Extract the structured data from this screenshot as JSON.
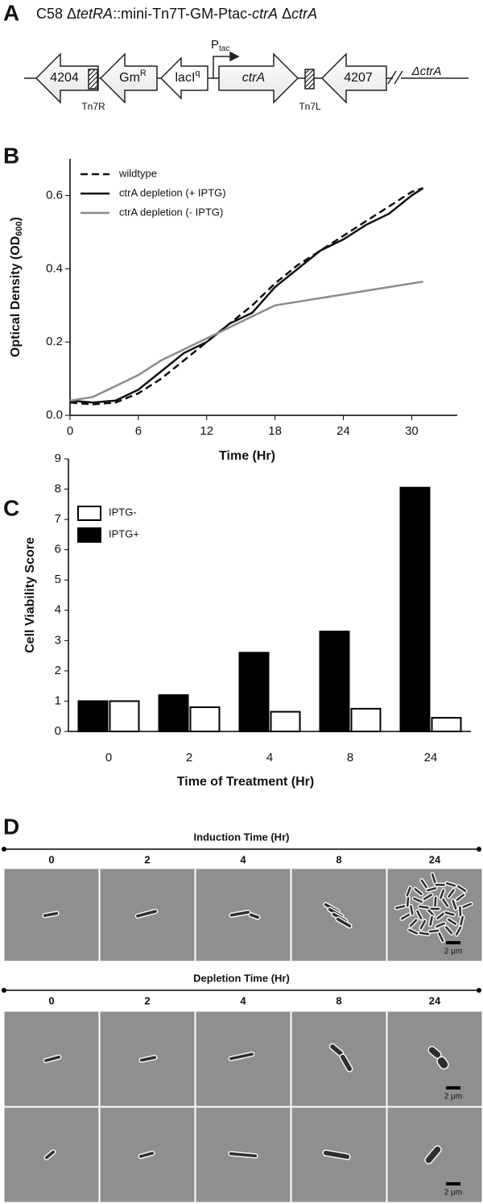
{
  "panel_a": {
    "label": "A",
    "title_parts": [
      "C58 Δ",
      "tetRA",
      "::mini-Tn7T-GM-Ptac-",
      "ctrA",
      "  Δ",
      "ctrA"
    ],
    "gene_4204": "4204",
    "gm": "Gm",
    "gm_sup": "R",
    "laci": "lacI",
    "laci_sup": "q",
    "ctra": "ctrA",
    "gene_4207": "4207",
    "delta_ctra": "ΔctrA",
    "tn7r": "Tn7R",
    "tn7l": "Tn7L",
    "ptac": "P",
    "ptac_sub": "tac"
  },
  "chart_data": [
    {
      "type": "line",
      "panel": "B",
      "xlabel": "Time (Hr)",
      "ylabel": "Optical Density (OD",
      "ylabel_sub": "600",
      "ylabel_end": ")",
      "x": [
        0,
        2,
        4,
        6,
        8,
        10,
        12,
        14,
        16,
        18,
        20,
        22,
        24,
        26,
        28,
        30,
        31
      ],
      "xlim": [
        0,
        34
      ],
      "xticks": [
        0,
        6,
        12,
        18,
        24,
        30
      ],
      "ylim": [
        0,
        0.7
      ],
      "yticks": [
        {
          "value": 0,
          "label": "0.0"
        },
        0.2,
        0.4,
        0.6
      ],
      "series": [
        {
          "name": "wildtype",
          "color": "#111111",
          "linestyle": "dashed",
          "values": [
            0.035,
            0.03,
            0.035,
            0.06,
            0.1,
            0.15,
            0.2,
            0.25,
            0.3,
            0.36,
            0.41,
            0.45,
            0.49,
            0.53,
            0.57,
            0.61,
            0.62
          ]
        },
        {
          "name": "ctrA depletion (+ IPTG)",
          "color": "#111111",
          "linestyle": "solid",
          "values": [
            0.04,
            0.035,
            0.04,
            0.07,
            0.12,
            0.17,
            0.2,
            0.25,
            0.28,
            0.35,
            0.4,
            0.45,
            0.48,
            0.52,
            0.55,
            0.6,
            0.62
          ]
        },
        {
          "name": "ctrA depletion (- IPTG)",
          "color": "#8c8c8c",
          "linestyle": "solid",
          "values": [
            0.04,
            0.05,
            0.08,
            0.11,
            0.15,
            0.18,
            0.21,
            0.24,
            0.27,
            0.3,
            0.31,
            0.32,
            0.33,
            0.34,
            0.35,
            0.36,
            0.365
          ]
        }
      ]
    },
    {
      "type": "bar",
      "panel": "C",
      "xlabel": "Time of Treatment (Hr)",
      "ylabel": "Cell Viability Score",
      "categories": [
        "0",
        "2",
        "4",
        "8",
        "24"
      ],
      "ylim": [
        0,
        9
      ],
      "yticks": [
        0,
        1,
        2,
        3,
        4,
        5,
        6,
        7,
        8,
        9
      ],
      "series": [
        {
          "name": "IPTG-",
          "color": "#ffffff",
          "values": [
            1.0,
            0.8,
            0.65,
            0.75,
            0.45
          ]
        },
        {
          "name": "IPTG+",
          "color": "#000000",
          "values": [
            1.0,
            1.2,
            2.6,
            3.3,
            8.05
          ]
        }
      ]
    }
  ],
  "panel_d": {
    "label": "D",
    "induction": {
      "title": "Induction Time (Hr)",
      "times": [
        "0",
        "2",
        "4",
        "8",
        "24"
      ],
      "scale": "2 μm"
    },
    "depletion": {
      "title": "Depletion Time (Hr)",
      "times": [
        "0",
        "2",
        "4",
        "8",
        "24"
      ],
      "scale_1": "2 μm",
      "scale_2": "2 μm"
    }
  }
}
